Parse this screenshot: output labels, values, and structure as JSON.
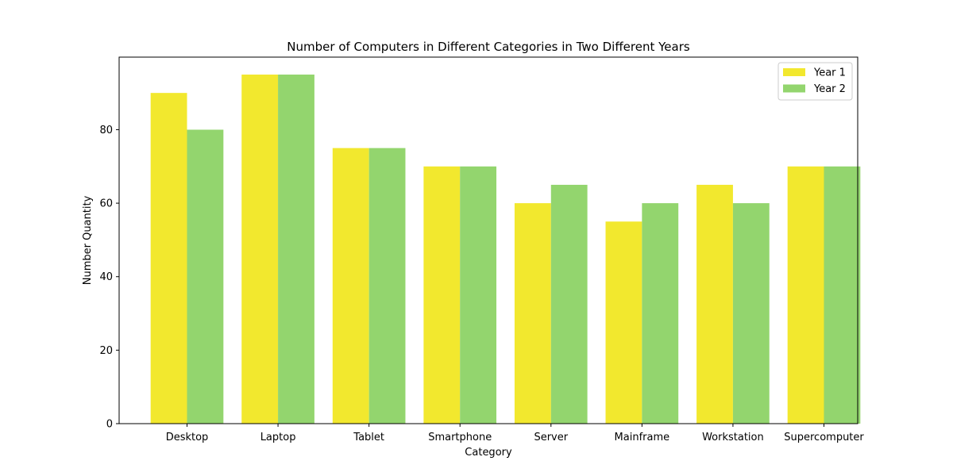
{
  "chart_data": {
    "type": "bar",
    "title": "Number of Computers in Different Categories in Two Different Years",
    "xlabel": "Category",
    "ylabel": "Number Quantity",
    "categories": [
      "Desktop",
      "Laptop",
      "Tablet",
      "Smartphone",
      "Server",
      "Mainframe",
      "Workstation",
      "Supercomputer"
    ],
    "series": [
      {
        "name": "Year 1",
        "color": "#f2e82e",
        "values": [
          90,
          95,
          75,
          70,
          60,
          55,
          65,
          70
        ]
      },
      {
        "name": "Year 2",
        "color": "#93d56e",
        "values": [
          80,
          95,
          75,
          70,
          65,
          60,
          60,
          70
        ]
      }
    ],
    "ylim": [
      0,
      99.75
    ],
    "yticks": [
      0,
      20,
      40,
      60,
      80
    ],
    "grid": false,
    "legend": "top-right"
  }
}
